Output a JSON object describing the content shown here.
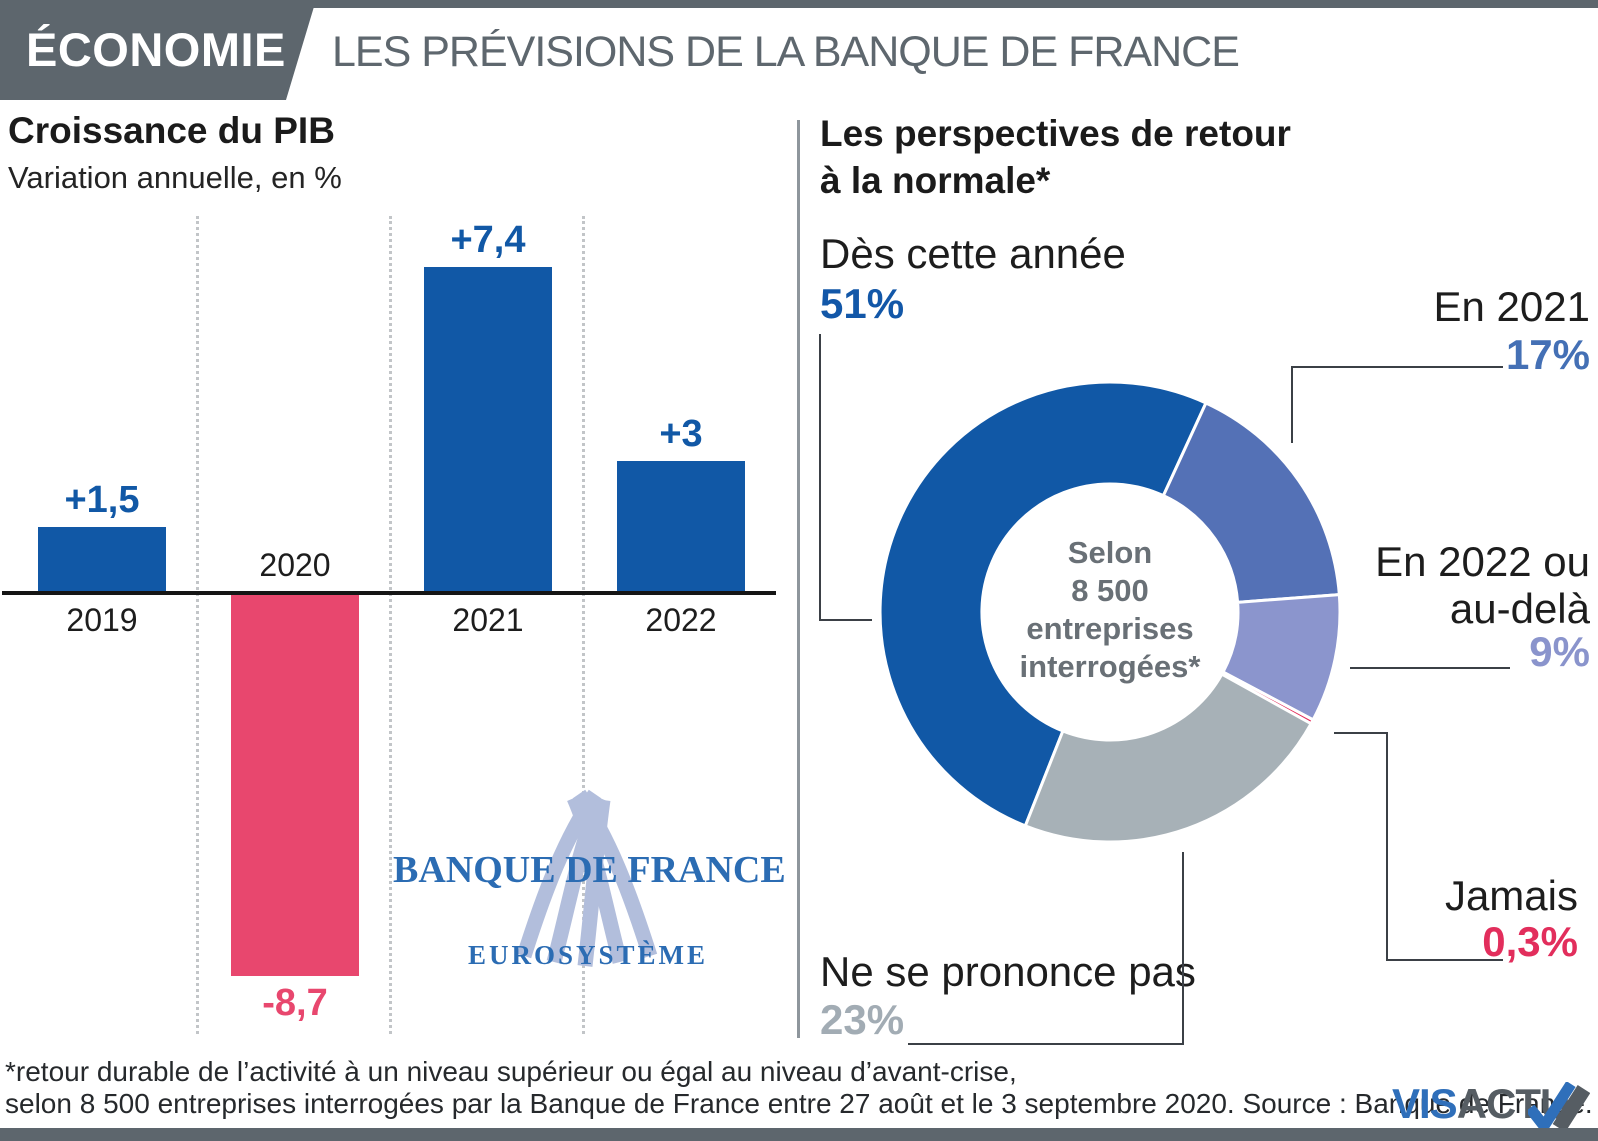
{
  "header": {
    "badge": "ÉCONOMIE",
    "title": "LES PRÉVISIONS DE LA BANQUE DE FRANCE",
    "bar_color": "#5d666d"
  },
  "gdp_chart": {
    "title": "Croissance du PIB",
    "subtitle": "Variation annuelle, en %"
  },
  "logo": {
    "name": "BANQUE DE FRANCE",
    "sub": "EUROSYSTÈME",
    "text_color": "#2b6cb3",
    "emblem_color": "#b2bedc"
  },
  "donut_panel": {
    "title_line1": "Les perspectives de retour",
    "title_line2": "à la normale*",
    "center_lines": [
      "Selon",
      "8 500",
      "entreprises",
      "interrogées*"
    ]
  },
  "footer": {
    "line1": "*retour durable de l’activité à un niveau supérieur ou égal au niveau d’avant-crise,",
    "line2": "selon 8 500 entreprises interrogées par la Banque de France entre 27 août et le 3 septembre 2020.  Source : Banque de France.",
    "brand_vis": "VIS",
    "brand_actu": "ACTU"
  },
  "chart_data": [
    {
      "type": "bar",
      "title": "Croissance du PIB",
      "ylabel": "Variation annuelle, en %",
      "categories": [
        "2019",
        "2020",
        "2021",
        "2022"
      ],
      "values": [
        1.5,
        -8.7,
        7.4,
        3
      ],
      "value_labels": [
        "+1,5",
        "-8,7",
        "+7,4",
        "+3"
      ],
      "bar_colors": [
        "#1158a6",
        "#e8476e",
        "#1158a6",
        "#1158a6"
      ],
      "grid": "dotted-vertical",
      "ylim": [
        -9.5,
        8.5
      ]
    },
    {
      "type": "donut",
      "title": "Les perspectives de retour à la normale*",
      "center_label": "Selon 8 500 entreprises interrogées*",
      "start_angle_deg": 201.6,
      "legend_position": "callouts",
      "segments": [
        {
          "label": "Dès cette année",
          "value": 51,
          "value_text": "51%",
          "color": "#1158a6",
          "text_color": "#1257a8"
        },
        {
          "label": "En 2021",
          "value": 17,
          "value_text": "17%",
          "color": "#5471b6",
          "text_color": "#4470b5"
        },
        {
          "label": "En 2022 ou au-delà",
          "value": 9,
          "value_text": "9%",
          "color": "#8b95cd",
          "text_color": "#8a94cc"
        },
        {
          "label": "Jamais",
          "value": 0.3,
          "value_text": "0,3%",
          "color": "#e22e5c",
          "text_color": "#e22e5c"
        },
        {
          "label": "Ne se prononce pas",
          "value": 23,
          "value_text": "23%",
          "color": "#a7b1b7",
          "text_color": "#a2acb4"
        }
      ]
    }
  ]
}
